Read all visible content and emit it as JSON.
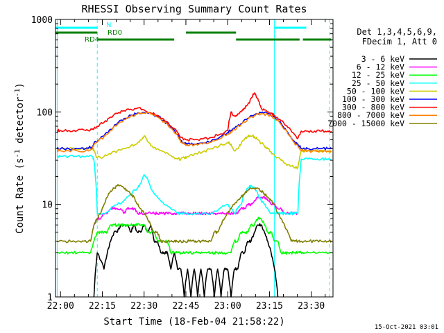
{
  "chart_data": {
    "type": "line",
    "title": "RHESSI Observing Summary Count Rates",
    "xlabel": "Start Time (18-Feb-04 21:58:22)",
    "ylabel_main": "Count Rate (s",
    "ylabel_sup1": "-1",
    "ylabel_mid": " detector",
    "ylabel_sup2": "-1",
    "ylabel_end": ")",
    "date_stamp": "15-Oct-2021 03:01",
    "x_range_minutes": [
      21.97,
      23.63
    ],
    "x_ticks": [
      {
        "label": "22:00",
        "t": 22.0
      },
      {
        "label": "22:15",
        "t": 22.25
      },
      {
        "label": "22:30",
        "t": 22.5
      },
      {
        "label": "22:45",
        "t": 22.75
      },
      {
        "label": "23:00",
        "t": 23.0
      },
      {
        "label": "23:15",
        "t": 23.25
      },
      {
        "label": "23:30",
        "t": 23.5
      }
    ],
    "y_scale": "log",
    "y_range": [
      1,
      1000
    ],
    "y_ticks": [
      {
        "label": "1",
        "v": 1
      },
      {
        "label": "10",
        "v": 10
      },
      {
        "label": "100",
        "v": 100
      },
      {
        "label": "1000",
        "v": 1000
      }
    ],
    "legend_header_1": "Det 1,3,4,5,6,9,",
    "legend_header_2": "FDecim 1, Att 0",
    "legend_placement": "right",
    "series": [
      {
        "name": "3 - 6 keV",
        "color": "#000000",
        "t": [
          22.2,
          22.22,
          22.26,
          22.28,
          22.3,
          22.32,
          22.34,
          22.36,
          22.38,
          22.4,
          22.42,
          22.44,
          22.46,
          22.48,
          22.5,
          22.52,
          22.54,
          22.56,
          22.58,
          22.6,
          22.62,
          22.64,
          22.66,
          22.68,
          22.7,
          22.72,
          22.74,
          22.76,
          22.78,
          22.8,
          22.82,
          22.84,
          22.86,
          22.88,
          22.9,
          22.92,
          22.94,
          22.96,
          22.98,
          23.0,
          23.02,
          23.04,
          23.06,
          23.08,
          23.1,
          23.12,
          23.14,
          23.16,
          23.18,
          23.2,
          23.22,
          23.24,
          23.26,
          23.28,
          23.3
        ],
        "v": [
          1,
          3,
          2,
          3,
          4,
          5,
          5,
          6,
          6,
          6,
          5,
          6,
          5,
          5,
          6,
          5,
          6,
          4,
          4,
          3,
          3,
          3,
          2,
          3,
          2,
          2,
          1,
          2,
          1,
          2,
          1,
          2,
          1,
          2,
          2,
          1,
          2,
          1,
          2,
          2,
          1,
          2,
          2,
          3,
          3,
          4,
          4,
          5,
          6,
          6,
          5,
          4,
          3,
          2,
          1
        ]
      },
      {
        "name": "6 - 12 keV",
        "color": "#ff00ff",
        "t": [
          22.2,
          22.22,
          22.24,
          22.26,
          22.28,
          22.3,
          22.32,
          22.34,
          22.36,
          22.38,
          22.4,
          22.42,
          22.44,
          22.46,
          22.48,
          22.5,
          22.52,
          22.54,
          22.56,
          22.58,
          22.6,
          22.62,
          22.64,
          22.66,
          22.68,
          22.7,
          22.72,
          22.74,
          22.76,
          22.78,
          22.8,
          22.82,
          22.84,
          22.86,
          22.88,
          22.9,
          22.92,
          22.94,
          22.96,
          22.98,
          23.0,
          23.02,
          23.04,
          23.06,
          23.08,
          23.1,
          23.12,
          23.14,
          23.16,
          23.18,
          23.2,
          23.22,
          23.24,
          23.26,
          23.28,
          23.3,
          23.32,
          23.34,
          23.36,
          23.38,
          23.4,
          23.42
        ],
        "v": [
          6,
          7,
          7,
          8,
          8,
          9,
          9,
          9,
          9,
          8,
          9,
          9,
          9,
          8,
          8,
          8,
          8,
          8,
          8,
          8,
          8,
          8,
          8,
          8,
          8,
          8,
          8,
          8,
          8,
          8,
          8,
          8,
          8,
          8,
          8,
          8,
          8,
          8,
          8,
          8,
          8,
          8,
          8,
          8,
          9,
          9,
          10,
          10,
          11,
          12,
          12,
          12,
          11,
          10,
          10,
          9,
          9,
          8,
          8,
          8,
          8,
          8
        ]
      },
      {
        "name": "12 - 25 keV",
        "color": "#00ff00",
        "t": [
          21.98,
          22.02,
          22.06,
          22.1,
          22.14,
          22.18,
          22.2,
          22.22,
          22.24,
          22.26,
          22.28,
          22.3,
          22.32,
          22.34,
          22.36,
          22.38,
          22.4,
          22.42,
          22.44,
          22.46,
          22.48,
          22.5,
          22.52,
          22.54,
          22.56,
          22.58,
          22.6,
          22.62,
          22.64,
          22.66,
          22.68,
          22.7,
          22.72,
          22.74,
          22.76,
          22.78,
          22.8,
          22.82,
          22.84,
          22.86,
          22.88,
          22.9,
          22.92,
          22.94,
          22.96,
          22.98,
          23.0,
          23.02,
          23.04,
          23.06,
          23.08,
          23.1,
          23.12,
          23.14,
          23.16,
          23.18,
          23.2,
          23.22,
          23.24,
          23.26,
          23.28,
          23.3,
          23.32,
          23.34,
          23.36,
          23.38,
          23.4,
          23.42,
          23.44,
          23.46,
          23.5,
          23.54,
          23.58,
          23.62
        ],
        "v": [
          3,
          3,
          3,
          3,
          3,
          3,
          4,
          5,
          5,
          5,
          5,
          6,
          6,
          6,
          6,
          6,
          6,
          6,
          6,
          6,
          6,
          6,
          5,
          5,
          5,
          4,
          4,
          4,
          4,
          3,
          3,
          3,
          3,
          3,
          3,
          3,
          3,
          3,
          3,
          3,
          3,
          3,
          3,
          3,
          3,
          3,
          3,
          3,
          4,
          4,
          5,
          5,
          5,
          6,
          6,
          7,
          7,
          6,
          5,
          5,
          4,
          4,
          3,
          3,
          3,
          3,
          3,
          3,
          3,
          3,
          3,
          3,
          3,
          3
        ]
      },
      {
        "name": "25 - 50 keV",
        "color": "#00ffff",
        "t": [
          21.98,
          22.0,
          22.05,
          22.1,
          22.15,
          22.19,
          22.2,
          22.22,
          22.26,
          22.3,
          22.34,
          22.38,
          22.42,
          22.46,
          22.48,
          22.5,
          22.52,
          22.54,
          22.58,
          22.62,
          22.66,
          22.7,
          22.72,
          22.74,
          22.76,
          22.8,
          22.85,
          22.9,
          22.95,
          23.0,
          23.02,
          23.04,
          23.06,
          23.08,
          23.1,
          23.12,
          23.14,
          23.16,
          23.18,
          23.2,
          23.22,
          23.24,
          23.26,
          23.28,
          23.3,
          23.32,
          23.34,
          23.36,
          23.38,
          23.4,
          23.42,
          23.44,
          23.48,
          23.52,
          23.56,
          23.6,
          23.62
        ],
        "v": [
          33,
          33,
          33,
          33,
          33,
          33,
          30,
          8,
          8,
          9,
          10,
          11,
          13,
          15,
          17,
          21,
          19,
          15,
          12,
          10,
          9,
          8,
          8,
          8,
          8,
          8,
          8,
          8,
          9,
          10,
          9,
          8,
          9,
          10,
          13,
          15,
          16,
          15,
          13,
          11,
          10,
          9,
          8,
          8,
          8,
          8,
          8,
          8,
          8,
          8,
          8,
          31,
          31,
          31,
          31,
          31,
          31
        ]
      },
      {
        "name": "50 - 100 keV",
        "color": "#cccc00",
        "t": [
          21.98,
          22.0,
          22.05,
          22.1,
          22.15,
          22.19,
          22.2,
          22.22,
          22.26,
          22.3,
          22.34,
          22.38,
          22.42,
          22.46,
          22.48,
          22.5,
          22.52,
          22.54,
          22.58,
          22.62,
          22.66,
          22.7,
          22.72,
          22.74,
          22.76,
          22.8,
          22.85,
          22.9,
          22.95,
          23.0,
          23.02,
          23.04,
          23.06,
          23.08,
          23.1,
          23.12,
          23.14,
          23.16,
          23.18,
          23.2,
          23.22,
          23.24,
          23.26,
          23.28,
          23.3,
          23.32,
          23.34,
          23.36,
          23.38,
          23.4,
          23.42,
          23.44,
          23.48,
          23.52,
          23.56,
          23.6,
          23.62
        ],
        "v": [
          40,
          40,
          40,
          40,
          40,
          40,
          38,
          32,
          33,
          35,
          38,
          40,
          43,
          46,
          50,
          55,
          48,
          43,
          40,
          37,
          34,
          31,
          31,
          32,
          33,
          35,
          37,
          40,
          43,
          47,
          45,
          38,
          40,
          45,
          50,
          54,
          55,
          54,
          50,
          46,
          43,
          40,
          37,
          34,
          32,
          30,
          28,
          27,
          26,
          25,
          25,
          38,
          38,
          38,
          38,
          38,
          38
        ]
      },
      {
        "name": "100 - 300 keV",
        "color": "#0000ff",
        "t": [
          21.98,
          22.0,
          22.05,
          22.1,
          22.15,
          22.19,
          22.2,
          22.22,
          22.26,
          22.3,
          22.34,
          22.38,
          22.42,
          22.46,
          22.5,
          22.54,
          22.58,
          22.62,
          22.66,
          22.7,
          22.72,
          22.74,
          22.76,
          22.8,
          22.85,
          22.9,
          22.95,
          23.0,
          23.02,
          23.04,
          23.08,
          23.12,
          23.16,
          23.2,
          23.24,
          23.28,
          23.32,
          23.36,
          23.4,
          23.42,
          23.44,
          23.48,
          23.52,
          23.56,
          23.6,
          23.62
        ],
        "v": [
          40,
          40,
          40,
          40,
          40,
          42,
          46,
          48,
          55,
          65,
          75,
          85,
          92,
          97,
          99,
          97,
          90,
          80,
          68,
          57,
          48,
          46,
          45,
          45,
          46,
          48,
          53,
          60,
          63,
          66,
          75,
          85,
          93,
          98,
          96,
          88,
          75,
          60,
          48,
          45,
          40,
          40,
          40,
          40,
          40,
          40
        ]
      },
      {
        "name": "300 - 800 keV",
        "color": "#ff0000",
        "t": [
          21.98,
          22.0,
          22.05,
          22.1,
          22.15,
          22.19,
          22.2,
          22.22,
          22.26,
          22.3,
          22.34,
          22.38,
          22.42,
          22.46,
          22.5,
          22.54,
          22.58,
          22.62,
          22.66,
          22.7,
          22.72,
          22.74,
          22.76,
          22.8,
          22.85,
          22.9,
          22.95,
          23.0,
          23.02,
          23.04,
          23.06,
          23.08,
          23.1,
          23.12,
          23.14,
          23.16,
          23.18,
          23.2,
          23.22,
          23.24,
          23.26,
          23.28,
          23.32,
          23.36,
          23.4,
          23.42,
          23.44,
          23.48,
          23.52,
          23.56,
          23.6,
          23.62
        ],
        "v": [
          63,
          63,
          63,
          63,
          63,
          65,
          66,
          70,
          77,
          88,
          96,
          103,
          107,
          110,
          105,
          98,
          92,
          82,
          70,
          60,
          53,
          51,
          50,
          50,
          51,
          53,
          57,
          63,
          100,
          90,
          95,
          100,
          110,
          120,
          140,
          160,
          140,
          110,
          105,
          100,
          97,
          92,
          80,
          68,
          57,
          52,
          62,
          62,
          62,
          62,
          62,
          62
        ]
      },
      {
        "name": "800 - 7000 keV",
        "color": "#ff8000",
        "t": [
          21.98,
          22.0,
          22.05,
          22.1,
          22.15,
          22.19,
          22.2,
          22.22,
          22.26,
          22.3,
          22.34,
          22.38,
          22.42,
          22.46,
          22.5,
          22.54,
          22.58,
          22.62,
          22.66,
          22.7,
          22.72,
          22.74,
          22.76,
          22.8,
          22.85,
          22.9,
          22.95,
          23.0,
          23.02,
          23.04,
          23.08,
          23.12,
          23.16,
          23.2,
          23.24,
          23.28,
          23.32,
          23.36,
          23.4,
          23.42,
          23.44,
          23.48,
          23.52,
          23.56,
          23.6,
          23.62
        ],
        "v": [
          38,
          38,
          38,
          38,
          38,
          40,
          44,
          47,
          54,
          63,
          73,
          83,
          90,
          95,
          97,
          95,
          88,
          78,
          67,
          56,
          47,
          45,
          44,
          44,
          45,
          47,
          51,
          58,
          61,
          64,
          73,
          83,
          91,
          96,
          93,
          86,
          73,
          58,
          46,
          43,
          38,
          38,
          38,
          38,
          38,
          38
        ]
      },
      {
        "name": "7000 - 15000 keV",
        "color": "#808000",
        "t": [
          21.98,
          22.02,
          22.06,
          22.1,
          22.14,
          22.18,
          22.2,
          22.22,
          22.24,
          22.26,
          22.28,
          22.3,
          22.32,
          22.34,
          22.36,
          22.38,
          22.4,
          22.42,
          22.44,
          22.46,
          22.48,
          22.5,
          22.52,
          22.54,
          22.56,
          22.58,
          22.6,
          22.62,
          22.64,
          22.66,
          22.68,
          22.7,
          22.72,
          22.74,
          22.76,
          22.78,
          22.8,
          22.82,
          22.84,
          22.86,
          22.88,
          22.9,
          22.92,
          22.94,
          22.96,
          22.98,
          23.0,
          23.02,
          23.04,
          23.06,
          23.08,
          23.1,
          23.12,
          23.14,
          23.16,
          23.18,
          23.2,
          23.22,
          23.24,
          23.26,
          23.28,
          23.3,
          23.32,
          23.34,
          23.36,
          23.38,
          23.4,
          23.42,
          23.44,
          23.48,
          23.52,
          23.56,
          23.6,
          23.62
        ],
        "v": [
          4,
          4,
          4,
          4,
          4,
          4,
          6,
          7,
          8,
          10,
          12,
          14,
          15,
          16,
          16,
          15,
          14,
          13,
          12,
          10,
          9,
          8,
          7,
          6,
          5,
          5,
          4,
          4,
          4,
          4,
          4,
          4,
          4,
          4,
          4,
          4,
          4,
          4,
          4,
          4,
          4,
          4,
          5,
          5,
          6,
          7,
          8,
          9,
          10,
          11,
          12,
          13,
          14,
          15,
          15,
          15,
          14,
          13,
          12,
          11,
          10,
          8,
          7,
          6,
          5,
          4,
          4,
          4,
          4,
          4,
          4,
          4,
          4,
          4
        ]
      }
    ],
    "state_bars": [
      {
        "label": "N",
        "color": "#00ffff",
        "segments": [
          [
            21.97,
            22.22
          ],
          [
            23.28,
            23.47
          ]
        ]
      },
      {
        "label": "RD0",
        "color": "#008000",
        "segments": [
          [
            21.97,
            22.22
          ],
          [
            22.75,
            23.05
          ]
        ]
      },
      {
        "label": "RD4",
        "color": "#008000",
        "segments": [
          [
            22.22,
            22.68
          ],
          [
            23.05,
            23.43
          ],
          [
            23.45,
            23.62
          ]
        ]
      }
    ],
    "vlines": [
      {
        "t": 21.98,
        "color": "#00ffff",
        "style": "solid"
      },
      {
        "t": 22.22,
        "color": "#00ffff",
        "style": "dashed"
      },
      {
        "t": 23.28,
        "color": "#00ffff",
        "style": "solid"
      },
      {
        "t": 23.61,
        "color": "#00ffff",
        "style": "dashed"
      }
    ]
  }
}
